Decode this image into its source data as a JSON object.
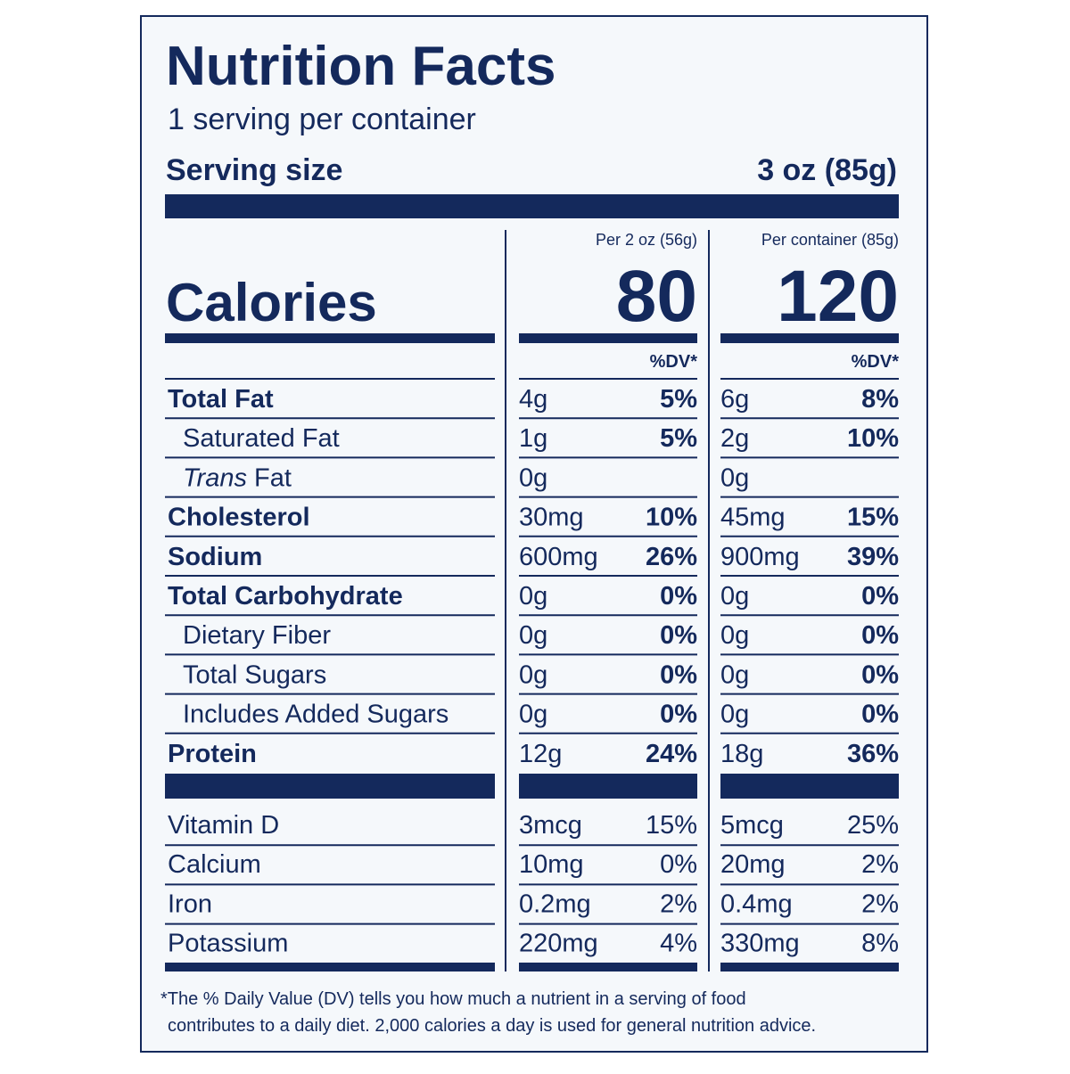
{
  "title": "Nutrition Facts",
  "servings": "1 serving per container",
  "serving_size": {
    "label": "Serving size",
    "value": "3 oz (85g)"
  },
  "columns": [
    "Per 2 oz (56g)",
    "Per container (85g)"
  ],
  "calories": {
    "label": "Calories",
    "values": [
      "80",
      "120"
    ]
  },
  "dv_header": [
    "%DV*",
    "%DV*"
  ],
  "nutrients": [
    {
      "name": "Total Fat",
      "style": "bold",
      "values": [
        [
          "4g",
          "5%"
        ],
        [
          "6g",
          "8%"
        ]
      ]
    },
    {
      "name": "Saturated Fat",
      "style": "indent",
      "values": [
        [
          "1g",
          "5%"
        ],
        [
          "2g",
          "10%"
        ]
      ]
    },
    {
      "name_italic": "Trans",
      "name": "Fat",
      "style": "indent",
      "values": [
        [
          "0g"
        ],
        [
          "0g"
        ]
      ]
    },
    {
      "name": "Cholesterol",
      "style": "bold",
      "values": [
        [
          "30mg",
          "10%"
        ],
        [
          "45mg",
          "15%"
        ]
      ]
    },
    {
      "name": "Sodium",
      "style": "bold",
      "values": [
        [
          "600mg",
          "26%"
        ],
        [
          "900mg",
          "39%"
        ]
      ]
    },
    {
      "name": "Total Carbohydrate",
      "style": "bold",
      "values": [
        [
          "0g",
          "0%"
        ],
        [
          "0g",
          "0%"
        ]
      ]
    },
    {
      "name": "Dietary Fiber",
      "style": "indent",
      "values": [
        [
          "0g",
          "0%"
        ],
        [
          "0g",
          "0%"
        ]
      ]
    },
    {
      "name": "Total Sugars",
      "style": "indent",
      "values": [
        [
          "0g",
          "0%"
        ],
        [
          "0g",
          "0%"
        ]
      ]
    },
    {
      "name": "Includes Added Sugars",
      "style": "indent",
      "values": [
        [
          "0g",
          "0%"
        ],
        [
          "0g",
          "0%"
        ]
      ]
    },
    {
      "name": "Protein",
      "style": "bold",
      "values": [
        [
          "12g",
          "24%"
        ],
        [
          "18g",
          "36%"
        ]
      ]
    }
  ],
  "vitamins": [
    {
      "name": "Vitamin D",
      "values": [
        [
          "3mcg",
          "15%"
        ],
        [
          "5mcg",
          "25%"
        ]
      ]
    },
    {
      "name": "Calcium",
      "values": [
        [
          "10mg",
          "0%"
        ],
        [
          "20mg",
          "2%"
        ]
      ]
    },
    {
      "name": "Iron",
      "values": [
        [
          "0.2mg",
          "2%"
        ],
        [
          "0.4mg",
          "2%"
        ]
      ]
    },
    {
      "name": "Potassium",
      "values": [
        [
          "220mg",
          "4%"
        ],
        [
          "330mg",
          "8%"
        ]
      ]
    }
  ],
  "footnote": [
    "*The % Daily Value (DV) tells you how much a nutrient in a serving of food",
    "contributes to a daily diet. 2,000 calories a day is used for general nutrition advice."
  ]
}
